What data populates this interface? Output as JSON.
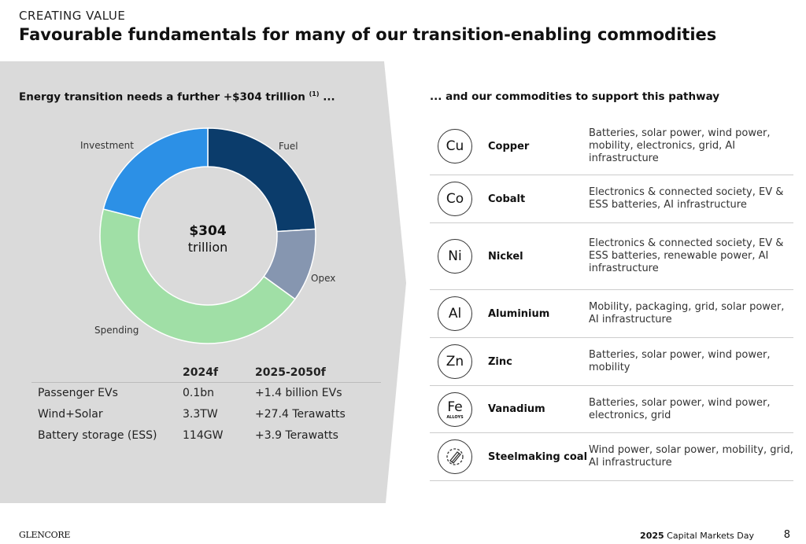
{
  "header": {
    "kicker": "CREATING VALUE",
    "title": "Favourable fundamentals for many of our transition-enabling commodities"
  },
  "left": {
    "heading": "Energy transition needs a further +$304 trillion",
    "footnote": "(1)",
    "ellipsis": " ...",
    "center_value": "$304",
    "center_unit": "trillion"
  },
  "chart_data": {
    "type": "pie",
    "title": "Energy transition needs a further +$304 trillion",
    "total_label": "$304 trillion",
    "categories": [
      "Fuel",
      "Opex",
      "Spending",
      "Investment"
    ],
    "values": [
      24,
      11,
      44,
      21
    ],
    "value_unit": "approx. % share (estimated)",
    "colors": [
      "#0b3c6b",
      "#8696b0",
      "#a0dfa6",
      "#2c90e6"
    ]
  },
  "stats": {
    "headers": [
      "",
      "2024f",
      "2025-2050f"
    ],
    "rows": [
      [
        "Passenger EVs",
        "0.1bn",
        "+1.4 billion EVs"
      ],
      [
        "Wind+Solar",
        "3.3TW",
        "+27.4 Terawatts"
      ],
      [
        "Battery storage (ESS)",
        "114GW",
        "+3.9 Terawatts"
      ]
    ]
  },
  "right": {
    "heading": "... and our commodities to support this pathway",
    "items": [
      {
        "symbol": "Cu",
        "name": "Copper",
        "desc": "Batteries, solar power, wind power, mobility, electronics, grid, AI infrastructure"
      },
      {
        "symbol": "Co",
        "name": "Cobalt",
        "desc": "Electronics & connected society, EV & ESS batteries, AI infrastructure"
      },
      {
        "symbol": "Ni",
        "name": "Nickel",
        "desc": "Electronics & connected society, EV & ESS batteries, renewable power, AI infrastructure"
      },
      {
        "symbol": "Al",
        "name": "Aluminium",
        "desc": "Mobility, packaging, grid, solar power, AI infrastructure"
      },
      {
        "symbol": "Zn",
        "name": "Zinc",
        "desc": "Batteries, solar power, wind power, mobility"
      },
      {
        "symbol": "Fe",
        "sub": "ALLOYS",
        "name": "Vanadium",
        "desc": "Batteries, solar power, wind power, electronics, grid"
      },
      {
        "symbol": "",
        "name": "Steelmaking coal",
        "desc": "Wind power, solar power, mobility, grid, AI infrastructure"
      }
    ]
  },
  "footer": {
    "logo": "GLENCORE",
    "year": "2025",
    "event": " Capital Markets Day",
    "page": "8"
  }
}
